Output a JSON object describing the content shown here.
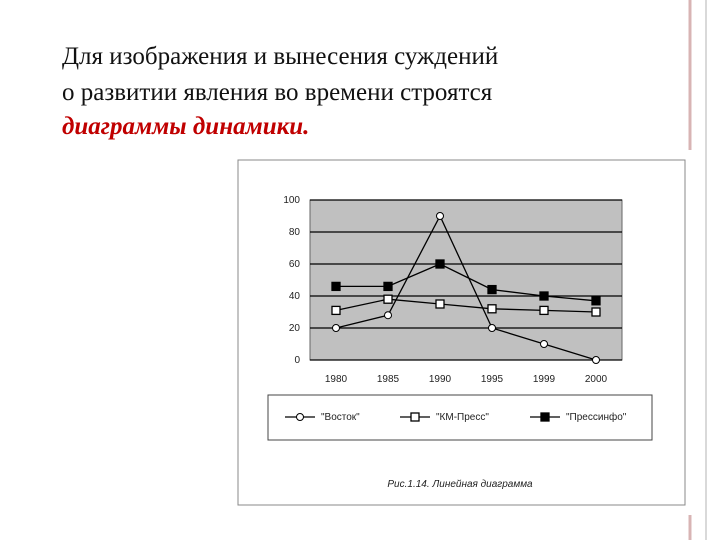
{
  "slide": {
    "lines": [
      "Для изображения и вынесения суждений",
      "о развитии явления во времени строятся"
    ],
    "emphasis": "диаграммы динамики."
  },
  "chart_data": {
    "type": "line",
    "caption": "Рис.1.14. Линейная диаграмма",
    "categories": [
      "1980",
      "1985",
      "1990",
      "1995",
      "1999",
      "2000"
    ],
    "series": [
      {
        "name": "\"Восток\"",
        "color": "#000000",
        "marker": "diamond",
        "values": [
          20,
          28,
          90,
          20,
          10,
          0
        ]
      },
      {
        "name": "\"КМ-Пресс\"",
        "color": "#000000",
        "marker": "open-square",
        "values": [
          31,
          38,
          35,
          32,
          31,
          30
        ]
      },
      {
        "name": "\"Прессинфо\"",
        "color": "#000000",
        "marker": "filled-square",
        "values": [
          46,
          46,
          60,
          44,
          40,
          37
        ]
      }
    ],
    "ylim": [
      0,
      100
    ],
    "yticks": [
      0,
      20,
      40,
      60,
      80,
      100
    ],
    "grid": true,
    "plot_background": "#c0c0c0",
    "legend": "bottom"
  }
}
